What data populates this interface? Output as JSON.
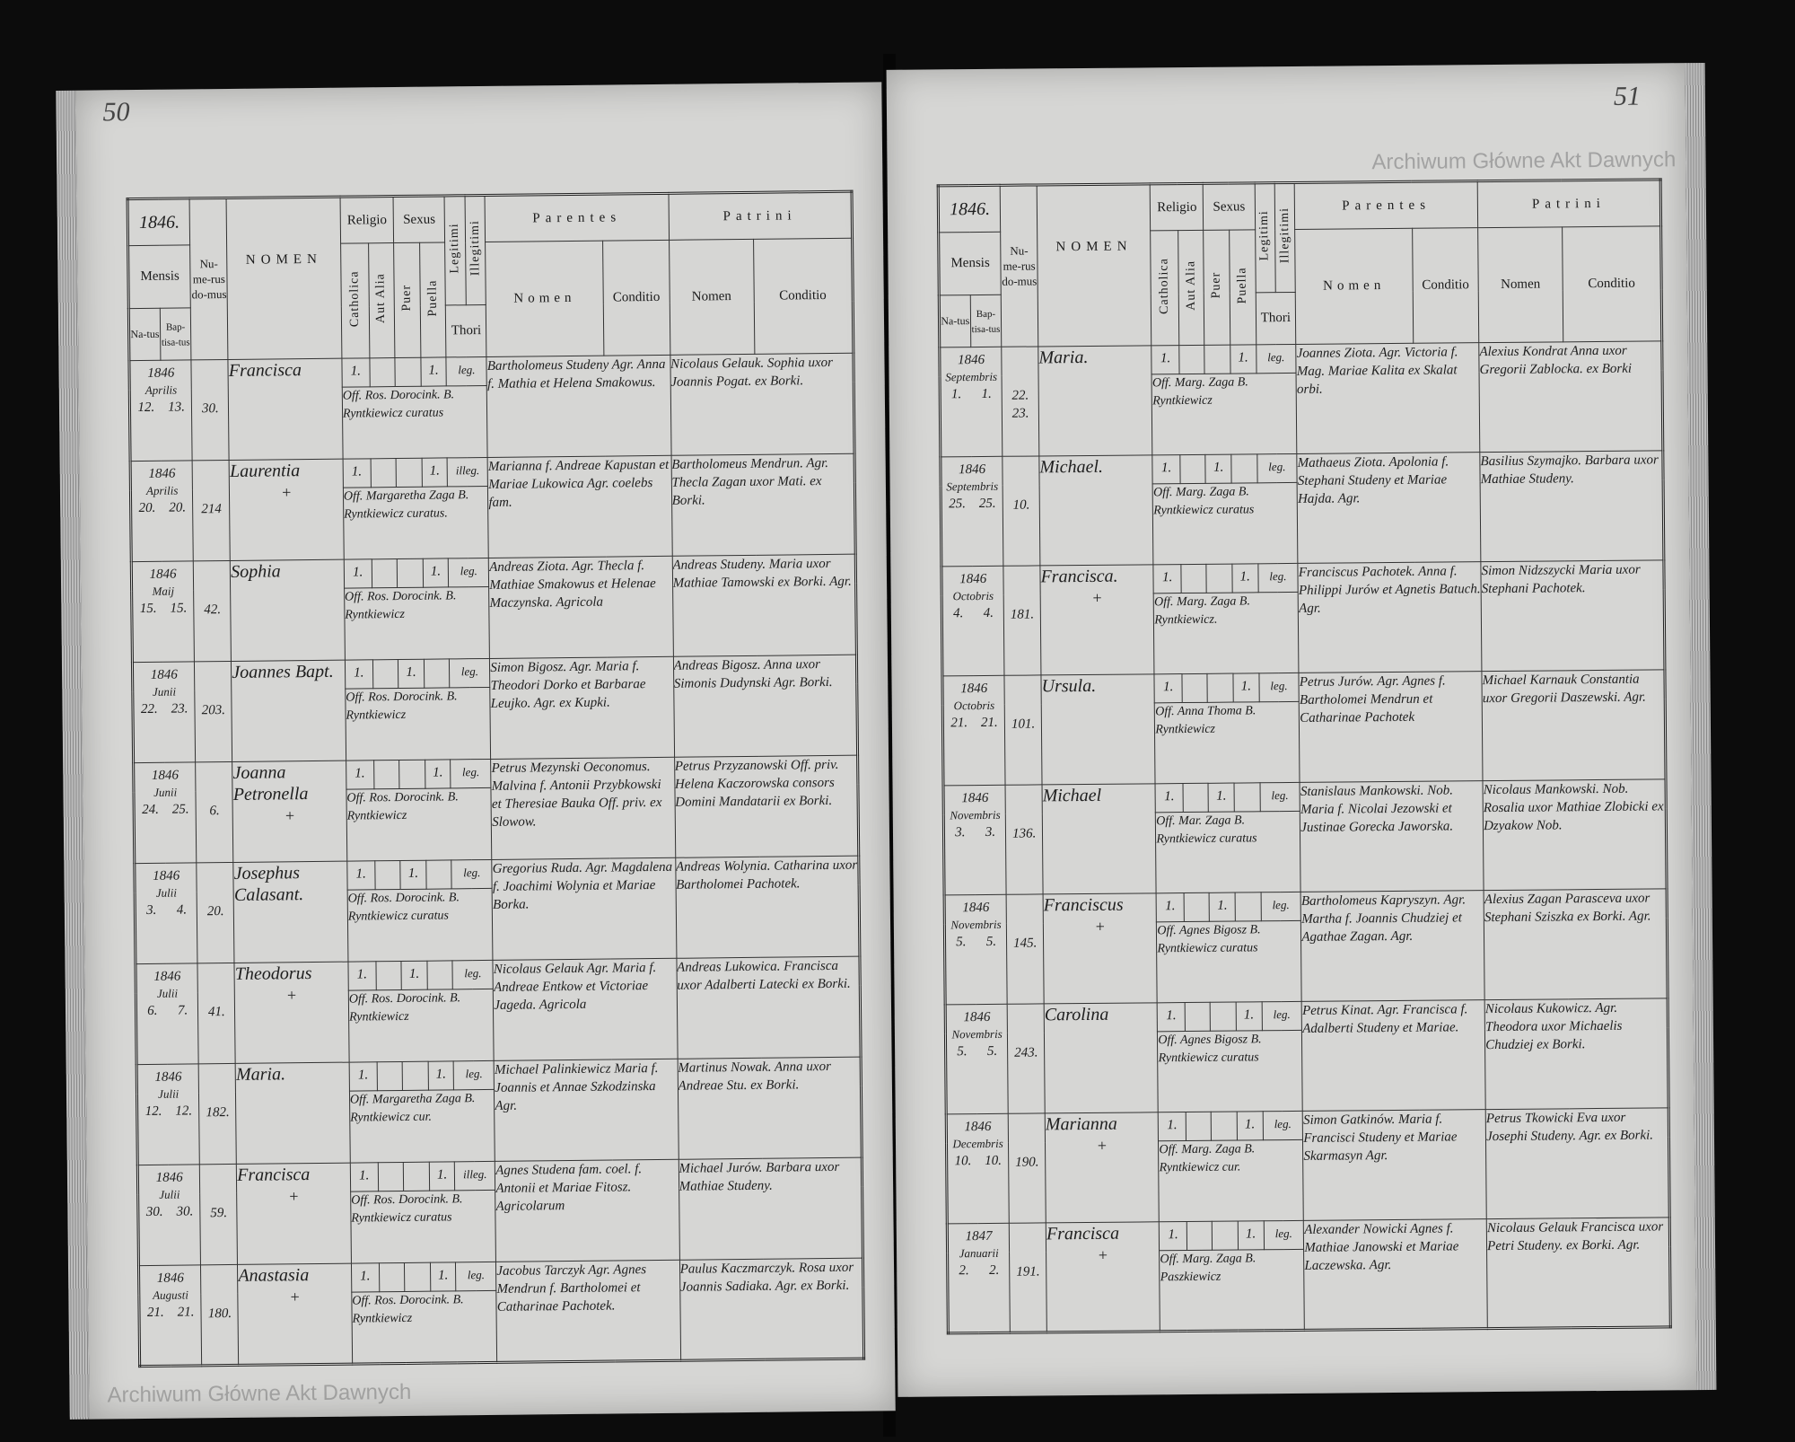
{
  "watermark": "Archiwum Główne Akt Dawnych",
  "headers": {
    "year": "1846.",
    "mensis": "Mensis",
    "natus": "Na-tus",
    "baptisatus": "Bap-tisa-tus",
    "numerus_domus": "Nu-me-rus do-mus",
    "nomen": "NOMEN",
    "religio": "Religio",
    "catholica": "Catholica",
    "aut_alia": "Aut Alia",
    "sexus": "Sexus",
    "puer": "Puer",
    "puella": "Puella",
    "legitimi": "Legitimi",
    "illegitimi": "Illegitimi",
    "thori": "Thori",
    "parentes": "Parentes",
    "parentes_nomen": "Nomen",
    "parentes_conditio": "Conditio",
    "patrini": "Patrini",
    "patrini_nomen": "Nomen",
    "patrini_conditio": "Conditio"
  },
  "left_page": {
    "page_number": "50",
    "rows": [
      {
        "year": "1846",
        "month": "Aprilis",
        "natus": "12.",
        "baptisatus": "13.",
        "domus": "30.",
        "name": "Francisca",
        "deceased": false,
        "sex": "puella",
        "catholica": "1.",
        "legit": "leg.",
        "officiant": "Off. Ros. Dorocink. B. Ryntkiewicz curatus",
        "parentes": "Bartholomeus Studeny Agr. Anna f. Mathia et Helena Smakowus.",
        "patrini": "Nicolaus Gelauk. Sophia uxor Joannis Pogat. ex Borki."
      },
      {
        "year": "1846",
        "month": "Aprilis",
        "natus": "20.",
        "baptisatus": "20.",
        "domus": "214",
        "name": "Laurentia",
        "deceased": true,
        "sex": "puella",
        "catholica": "1.",
        "legit": "illeg.",
        "officiant": "Off. Margaretha Zaga B. Ryntkiewicz curatus.",
        "parentes": "Marianna f. Andreae Kapustan et Mariae Lukowica Agr. coelebs fam.",
        "patrini": "Bartholomeus Mendrun. Agr. Thecla Zagan uxor Mati. ex Borki."
      },
      {
        "year": "1846",
        "month": "Maij",
        "natus": "15.",
        "baptisatus": "15.",
        "domus": "42.",
        "name": "Sophia",
        "deceased": false,
        "sex": "puella",
        "catholica": "1.",
        "legit": "leg.",
        "officiant": "Off. Ros. Dorocink. B. Ryntkiewicz",
        "parentes": "Andreas Ziota. Agr. Thecla f. Mathiae Smakowus et Helenae Maczynska. Agricola",
        "patrini": "Andreas Studeny. Maria uxor Mathiae Tamowski ex Borki. Agr."
      },
      {
        "year": "1846",
        "month": "Junii",
        "natus": "22.",
        "baptisatus": "23.",
        "domus": "203.",
        "name": "Joannes Bapt.",
        "deceased": false,
        "sex": "puer",
        "catholica": "1.",
        "legit": "leg.",
        "officiant": "Off. Ros. Dorocink. B. Ryntkiewicz",
        "parentes": "Simon Bigosz. Agr. Maria f. Theodori Dorko et Barbarae Leujko. Agr. ex Kupki.",
        "patrini": "Andreas Bigosz. Anna uxor Simonis Dudynski Agr. Borki."
      },
      {
        "year": "1846",
        "month": "Junii",
        "natus": "24.",
        "baptisatus": "25.",
        "domus": "6.",
        "name": "Joanna Petronella",
        "deceased": true,
        "sex": "puella",
        "catholica": "1.",
        "legit": "leg.",
        "officiant": "Off. Ros. Dorocink. B. Ryntkiewicz",
        "parentes": "Petrus Mezynski Oeconomus. Malvina f. Antonii Przybkowski et Theresiae Bauka Off. priv. ex Slowow.",
        "patrini": "Petrus Przyzanowski Off. priv. Helena Kaczorowska consors Domini Mandatarii ex Borki."
      },
      {
        "year": "1846",
        "month": "Julii",
        "natus": "3.",
        "baptisatus": "4.",
        "domus": "20.",
        "name": "Josephus Calasant.",
        "deceased": false,
        "sex": "puer",
        "catholica": "1.",
        "legit": "leg.",
        "officiant": "Off. Ros. Dorocink. B. Ryntkiewicz curatus",
        "parentes": "Gregorius Ruda. Agr. Magdalena f. Joachimi Wolynia et Mariae Borka.",
        "patrini": "Andreas Wolynia. Catharina uxor Bartholomei Pachotek."
      },
      {
        "year": "1846",
        "month": "Julii",
        "natus": "6.",
        "baptisatus": "7.",
        "domus": "41.",
        "name": "Theodorus",
        "deceased": true,
        "sex": "puer",
        "catholica": "1.",
        "legit": "leg.",
        "officiant": "Off. Ros. Dorocink. B. Ryntkiewicz",
        "parentes": "Nicolaus Gelauk Agr. Maria f. Andreae Entkow et Victoriae Jageda. Agricola",
        "patrini": "Andreas Lukowica. Francisca uxor Adalberti Latecki ex Borki."
      },
      {
        "year": "1846",
        "month": "Julii",
        "natus": "12.",
        "baptisatus": "12.",
        "domus": "182.",
        "name": "Maria.",
        "deceased": false,
        "sex": "puella",
        "catholica": "1.",
        "legit": "leg.",
        "officiant": "Off. Margaretha Zaga B. Ryntkiewicz cur.",
        "parentes": "Michael Palinkiewicz Maria f. Joannis et Annae Szkodzinska Agr.",
        "patrini": "Martinus Nowak. Anna uxor Andreae Stu. ex Borki."
      },
      {
        "year": "1846",
        "month": "Julii",
        "natus": "30.",
        "baptisatus": "30.",
        "domus": "59.",
        "name": "Francisca",
        "deceased": true,
        "sex": "puella",
        "catholica": "1.",
        "legit": "illeg.",
        "officiant": "Off. Ros. Dorocink. B. Ryntkiewicz curatus",
        "parentes": "Agnes Studena fam. coel. f. Antonii et Mariae Fitosz. Agricolarum",
        "patrini": "Michael Jurów. Barbara uxor Mathiae Studeny."
      },
      {
        "year": "1846",
        "month": "Augusti",
        "natus": "21.",
        "baptisatus": "21.",
        "domus": "180.",
        "name": "Anastasia",
        "deceased": true,
        "sex": "puella",
        "catholica": "1.",
        "legit": "leg.",
        "officiant": "Off. Ros. Dorocink. B. Ryntkiewicz",
        "parentes": "Jacobus Tarczyk Agr. Agnes Mendrun f. Bartholomei et Catharinae Pachotek.",
        "patrini": "Paulus Kaczmarczyk. Rosa uxor Joannis Sadiaka. Agr. ex Borki."
      }
    ]
  },
  "right_page": {
    "page_number": "51",
    "rows": [
      {
        "year": "1846",
        "month": "Septembris",
        "natus": "1.",
        "baptisatus": "1.",
        "domus": "22. 23.",
        "name": "Maria.",
        "deceased": false,
        "sex": "puella",
        "catholica": "1.",
        "legit": "leg.",
        "officiant": "Off. Marg. Zaga B. Ryntkiewicz",
        "parentes": "Joannes Ziota. Agr. Victoria f. Mag. Mariae Kalita ex Skalat orbi.",
        "patrini": "Alexius Kondrat Anna uxor Gregorii Zablocka. ex Borki"
      },
      {
        "year": "1846",
        "month": "Septembris",
        "natus": "25.",
        "baptisatus": "25.",
        "domus": "10.",
        "name": "Michael.",
        "deceased": false,
        "sex": "puer",
        "catholica": "1.",
        "legit": "leg.",
        "officiant": "Off. Marg. Zaga B. Ryntkiewicz curatus",
        "parentes": "Mathaeus Ziota. Apolonia f. Stephani Studeny et Mariae Hajda. Agr.",
        "patrini": "Basilius Szymajko. Barbara uxor Mathiae Studeny."
      },
      {
        "year": "1846",
        "month": "Octobris",
        "natus": "4.",
        "baptisatus": "4.",
        "domus": "181.",
        "name": "Francisca.",
        "deceased": true,
        "sex": "puella",
        "catholica": "1.",
        "legit": "leg.",
        "officiant": "Off. Marg. Zaga B. Ryntkiewicz.",
        "parentes": "Franciscus Pachotek. Anna f. Philippi Jurów et Agnetis Batuch. Agr.",
        "patrini": "Simon Nidzszycki Maria uxor Stephani Pachotek."
      },
      {
        "year": "1846",
        "month": "Octobris",
        "natus": "21.",
        "baptisatus": "21.",
        "domus": "101.",
        "name": "Ursula.",
        "deceased": false,
        "sex": "puella",
        "catholica": "1.",
        "legit": "leg.",
        "officiant": "Off. Anna Thoma B. Ryntkiewicz",
        "parentes": "Petrus Jurów. Agr. Agnes f. Bartholomei Mendrun et Catharinae Pachotek",
        "patrini": "Michael Karnauk Constantia uxor Gregorii Daszewski. Agr."
      },
      {
        "year": "1846",
        "month": "Novembris",
        "natus": "3.",
        "baptisatus": "3.",
        "domus": "136.",
        "name": "Michael",
        "deceased": false,
        "sex": "puer",
        "catholica": "1.",
        "legit": "leg.",
        "officiant": "Off. Mar. Zaga B. Ryntkiewicz curatus",
        "parentes": "Stanislaus Mankowski. Nob. Maria f. Nicolai Jezowski et Justinae Gorecka Jaworska.",
        "patrini": "Nicolaus Mankowski. Nob. Rosalia uxor Mathiae Zlobicki ex Dzyakow Nob."
      },
      {
        "year": "1846",
        "month": "Novembris",
        "natus": "5.",
        "baptisatus": "5.",
        "domus": "145.",
        "name": "Franciscus",
        "deceased": true,
        "sex": "puer",
        "catholica": "1.",
        "legit": "leg.",
        "officiant": "Off. Agnes Bigosz B. Ryntkiewicz curatus",
        "parentes": "Bartholomeus Kapryszyn. Agr. Martha f. Joannis Chudziej et Agathae Zagan. Agr.",
        "patrini": "Alexius Zagan Parasceva uxor Stephani Sziszka ex Borki. Agr."
      },
      {
        "year": "1846",
        "month": "Novembris",
        "natus": "5.",
        "baptisatus": "5.",
        "domus": "243.",
        "name": "Carolina",
        "deceased": false,
        "sex": "puella",
        "catholica": "1.",
        "legit": "leg.",
        "officiant": "Off. Agnes Bigosz B. Ryntkiewicz curatus",
        "parentes": "Petrus Kinat. Agr. Francisca f. Adalberti Studeny et Mariae.",
        "patrini": "Nicolaus Kukowicz. Agr. Theodora uxor Michaelis Chudziej ex Borki."
      },
      {
        "year": "1846",
        "month": "Decembris",
        "natus": "10.",
        "baptisatus": "10.",
        "domus": "190.",
        "name": "Marianna",
        "deceased": true,
        "sex": "puella",
        "catholica": "1.",
        "legit": "leg.",
        "officiant": "Off. Marg. Zaga B. Ryntkiewicz cur.",
        "parentes": "Simon Gatkinów. Maria f. Francisci Studeny et Mariae Skarmasyn Agr.",
        "patrini": "Petrus Tkowicki Eva uxor Josephi Studeny. Agr. ex Borki."
      },
      {
        "year": "1847",
        "month": "Januarii",
        "natus": "2.",
        "baptisatus": "2.",
        "domus": "191.",
        "name": "Francisca",
        "deceased": true,
        "sex": "puella",
        "catholica": "1.",
        "legit": "leg.",
        "officiant": "Off. Marg. Zaga B. Paszkiewicz",
        "parentes": "Alexander Nowicki Agnes f. Mathiae Janowski et Mariae Laczewska. Agr.",
        "patrini": "Nicolaus Gelauk Francisca uxor Petri Studeny. ex Borki. Agr."
      }
    ]
  },
  "colors": {
    "paper": "#d6d6d4",
    "ink": "#1e1e1e",
    "background": "#0c0c0c"
  }
}
